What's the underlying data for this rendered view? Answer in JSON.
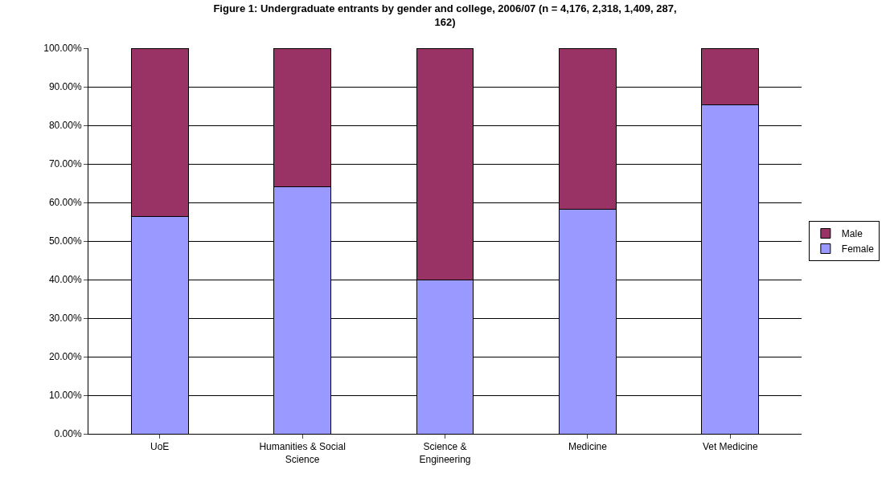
{
  "chart_data": {
    "type": "bar",
    "stacked": true,
    "title": "Figure 1: Undergraduate entrants by gender and college, 2006/07 (n = 4,176, 2,318, 1,409, 287, 162)",
    "categories": [
      "UoE",
      "Humanities & Social Science",
      "Science & Engineering",
      "Medicine",
      "Vet Medicine"
    ],
    "series": [
      {
        "name": "Female",
        "color": "#9999ff",
        "values": [
          56.3,
          64.1,
          39.8,
          58.2,
          85.4
        ]
      },
      {
        "name": "Male",
        "color": "#993366",
        "values": [
          43.7,
          35.9,
          60.2,
          41.8,
          14.6
        ]
      }
    ],
    "ylim": [
      0,
      100
    ],
    "yticks": [
      {
        "value": 0,
        "label": "0.00%"
      },
      {
        "value": 10,
        "label": "10.00%"
      },
      {
        "value": 20,
        "label": "20.00%"
      },
      {
        "value": 30,
        "label": "30.00%"
      },
      {
        "value": 40,
        "label": "40.00%"
      },
      {
        "value": 50,
        "label": "50.00%"
      },
      {
        "value": 60,
        "label": "60.00%"
      },
      {
        "value": 70,
        "label": "70.00%"
      },
      {
        "value": 80,
        "label": "80.00%"
      },
      {
        "value": 90,
        "label": "90.00%"
      },
      {
        "value": 100,
        "label": "100.00%"
      }
    ],
    "grid": "y",
    "legend": "right"
  }
}
